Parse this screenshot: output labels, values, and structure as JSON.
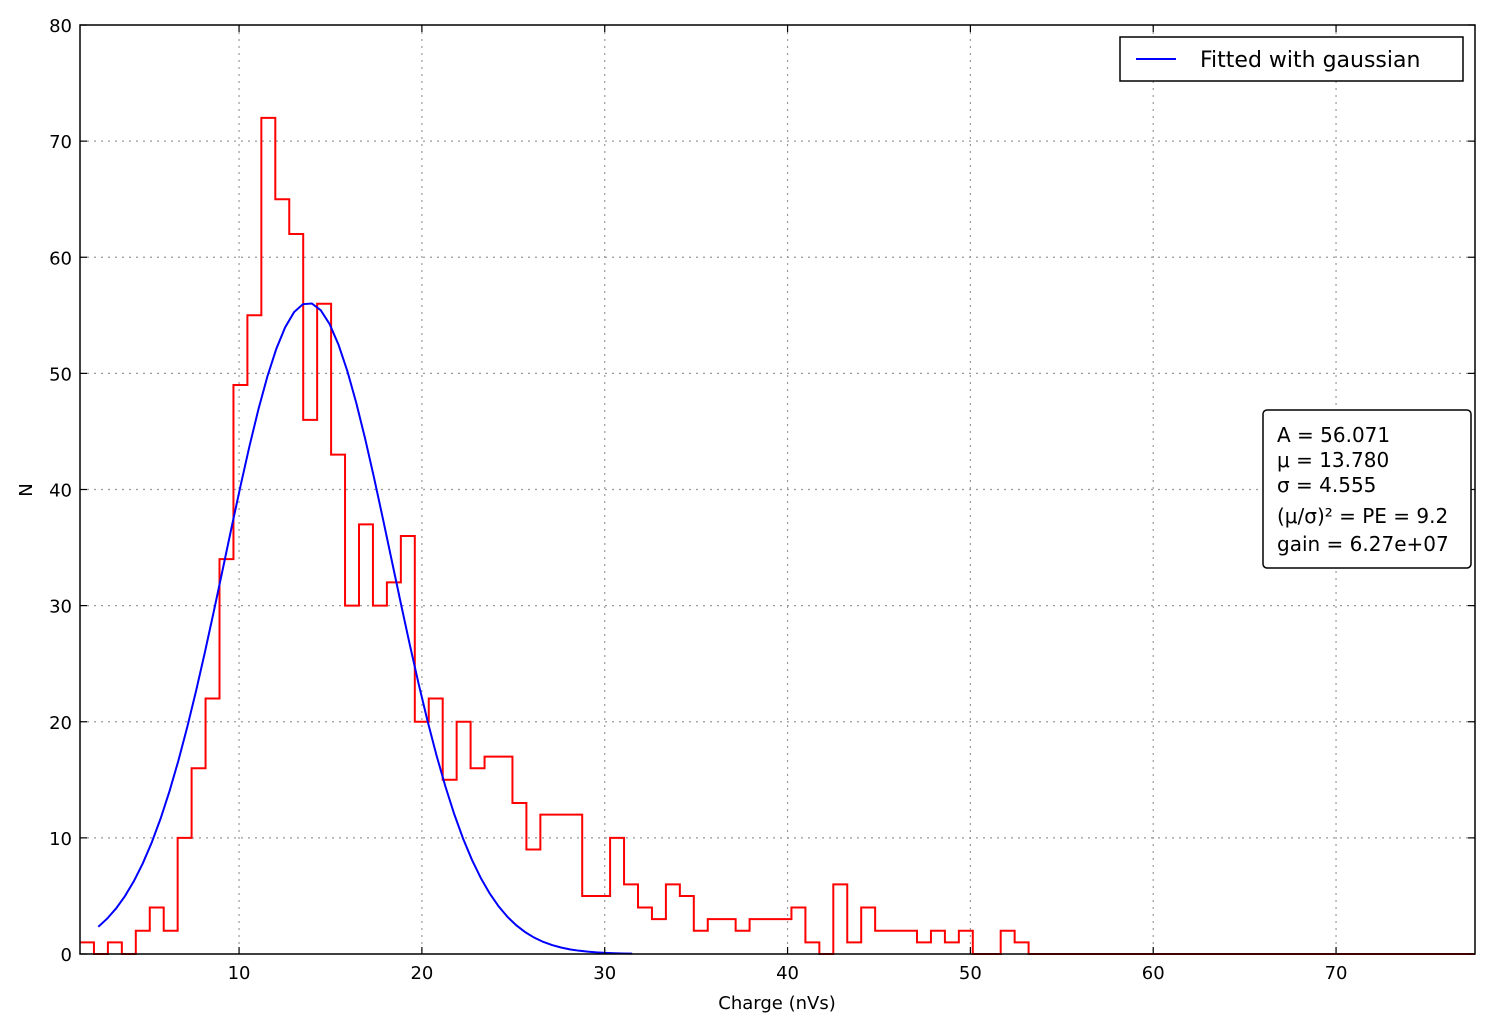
{
  "chart_data": {
    "type": "histogram",
    "xlabel": "Charge (nVs)",
    "ylabel": "N",
    "xlim": [
      1.3,
      77.6
    ],
    "ylim": [
      0,
      80
    ],
    "x_ticks": [
      10,
      20,
      30,
      40,
      50,
      60,
      70
    ],
    "y_ticks": [
      0,
      10,
      20,
      30,
      40,
      50,
      60,
      70,
      80
    ],
    "grid": true,
    "legend_position": "top-right",
    "histogram": {
      "name": "",
      "color": "#ff0000",
      "bin_start": 1.3,
      "bin_width": 0.763,
      "counts": [
        1,
        0,
        1,
        0,
        2,
        4,
        2,
        10,
        16,
        22,
        34,
        49,
        55,
        72,
        65,
        62,
        46,
        56,
        43,
        30,
        37,
        30,
        32,
        36,
        20,
        22,
        15,
        20,
        16,
        17,
        17,
        13,
        9,
        12,
        12,
        12,
        5,
        5,
        10,
        6,
        4,
        3,
        6,
        5,
        2,
        3,
        3,
        2,
        3,
        3,
        3,
        4,
        1,
        0,
        6,
        1,
        4,
        2,
        2,
        2,
        1,
        2,
        1,
        2,
        0,
        0,
        2,
        1,
        0,
        0,
        0,
        0,
        0,
        0,
        0,
        0,
        0,
        0,
        0,
        0,
        0,
        0,
        0,
        0,
        0,
        0,
        0,
        0,
        0,
        0,
        0,
        0,
        0,
        0,
        0,
        0,
        0,
        0,
        0,
        0
      ]
    },
    "fit": {
      "name": "Fitted with gaussian",
      "color": "#0000ff",
      "model": "gaussian",
      "A": 56.071,
      "mu": 13.78,
      "sigma": 4.555,
      "x_range": [
        2.3,
        31.5
      ]
    },
    "annotation": {
      "line1": "A = 56.071",
      "line2": "μ = 13.780",
      "line3": "σ = 4.555",
      "line4": "(μ/σ)² = PE = 9.2",
      "line5": "gain = 6.27e+07"
    }
  }
}
